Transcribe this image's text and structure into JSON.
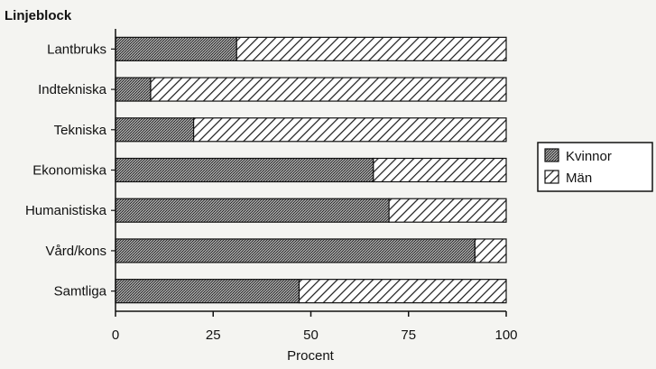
{
  "chart_data": {
    "type": "bar",
    "orientation": "horizontal",
    "stacked": true,
    "title": "",
    "ylabel": "Linjeblock",
    "xlabel": "Procent",
    "categories": [
      "Lantbruks",
      "Indtekniska",
      "Tekniska",
      "Ekonomiska",
      "Humanistiska",
      "Vård/kons",
      "Samtliga"
    ],
    "series": [
      {
        "name": "Kvinnor",
        "values": [
          31,
          9,
          20,
          66,
          70,
          92,
          47
        ]
      },
      {
        "name": "Män",
        "values": [
          69,
          91,
          80,
          34,
          30,
          8,
          53
        ]
      }
    ],
    "xlim": [
      0,
      100
    ],
    "xticks": [
      "0",
      "25",
      "50",
      "75",
      "100"
    ],
    "legend_position": "right",
    "grid": false,
    "colors": {
      "kvinnor": "#6a6a6a",
      "man": "#222222",
      "background": "#f4f4f1"
    }
  }
}
